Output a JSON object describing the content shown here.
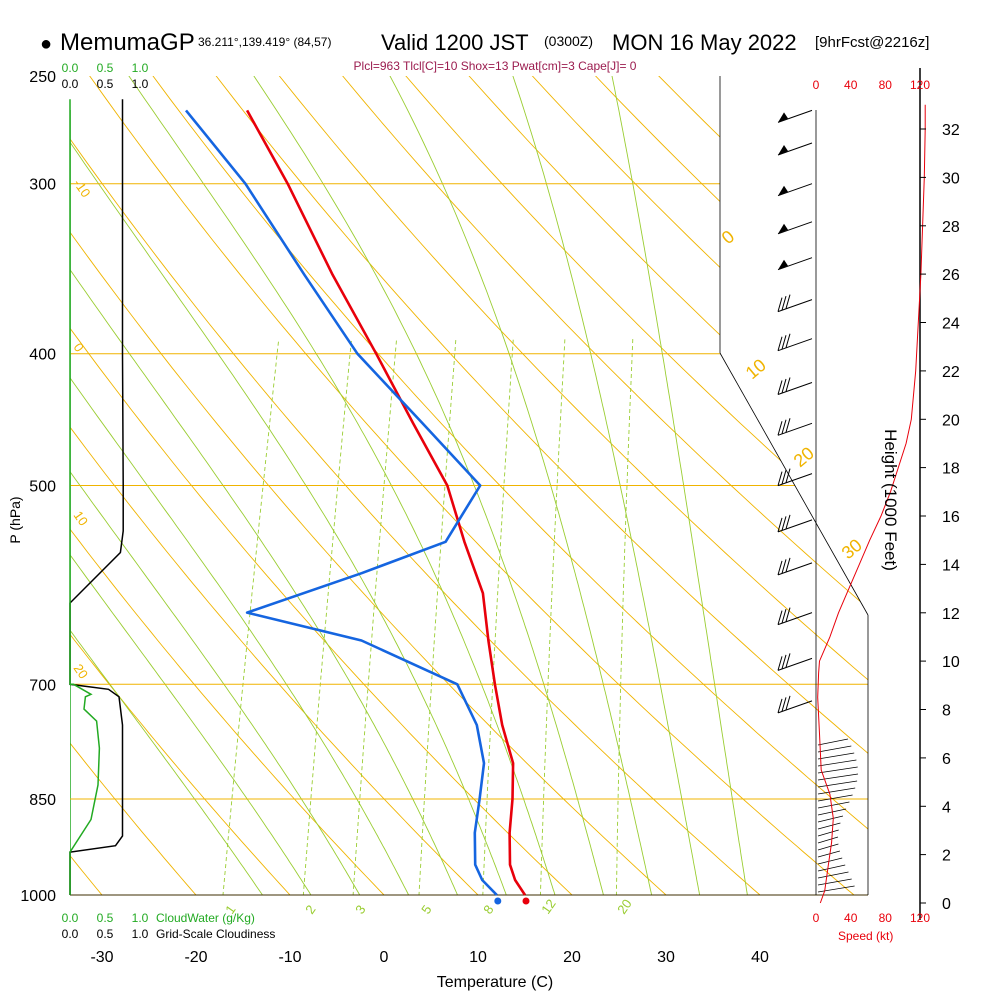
{
  "header": {
    "bullet": "●",
    "model": "MemumaGP",
    "location": "36.211°,139.419° (84,57)",
    "valid": "Valid 1200 JST",
    "zulu": "(0300Z)",
    "date": "MON 16 May 2022",
    "forecast": "[9hrFcst@2216z]",
    "indices": "Plcl=963 Tlcl[C]=10 Shox=13 Pwat[cm]=3 Cape[J]= 0"
  },
  "colors": {
    "isobar": "#f0b400",
    "dry_adiabat": "#f0b400",
    "moist_adiabat": "#9acd32",
    "mixing_ratio": "#9acd32",
    "temperature": "#e8000b",
    "dewpoint": "#1565e0",
    "cloud_water": "#22aa22",
    "cloudiness": "#000000",
    "speed": "#e8000b",
    "indices": "#9b1c4f"
  },
  "axes": {
    "pressure_title": "P (hPa)",
    "pressure_ticks": [
      "250",
      "300",
      "400",
      "500",
      "700",
      "850",
      "1000"
    ],
    "temperature_title": "Temperature (C)",
    "temperature_ticks": [
      "-30",
      "-20",
      "-10",
      "0",
      "10",
      "20",
      "30",
      "40"
    ],
    "height_title": "Height (1000 Feet)",
    "height_ticks": [
      "0",
      "2",
      "4",
      "6",
      "8",
      "10",
      "12",
      "14",
      "16",
      "18",
      "20",
      "22",
      "24",
      "26",
      "28",
      "30",
      "32"
    ],
    "speed_title": "Speed (kt)",
    "speed_ticks": [
      "0",
      "40",
      "80",
      "120"
    ],
    "cloud_water_title": "CloudWater (g/Kg)",
    "cloud_water_ticks": [
      "0.0",
      "0.5",
      "1.0"
    ],
    "cloudiness_title": "Grid-Scale Cloudiness",
    "cloudiness_ticks": [
      "0.0",
      "0.5",
      "1.0"
    ]
  },
  "line_labels": {
    "dry_adiabats": [
      "-10",
      "0",
      "10",
      "20",
      "0",
      "10",
      "20",
      "30"
    ],
    "mixing_ratios": [
      "1",
      "2",
      "3",
      "5",
      "8",
      "12",
      "20"
    ]
  },
  "chart_data": {
    "type": "line",
    "title": "Skew-T log-P sounding",
    "xlabel": "Temperature (C)",
    "ylabel": "P (hPa)",
    "xlim": [
      -33,
      36
    ],
    "ylim": [
      1000,
      250
    ],
    "y_scale": "log",
    "series": [
      {
        "name": "Temperature",
        "role": "temperature",
        "points": [
          [
            15,
            1000
          ],
          [
            13.5,
            975
          ],
          [
            12.5,
            950
          ],
          [
            11.5,
            900
          ],
          [
            10.8,
            850
          ],
          [
            9.8,
            800
          ],
          [
            7.5,
            750
          ],
          [
            5.5,
            700
          ],
          [
            3.5,
            650
          ],
          [
            1.5,
            600
          ],
          [
            -2,
            550
          ],
          [
            -5.5,
            500
          ],
          [
            -11,
            450
          ],
          [
            -17,
            400
          ],
          [
            -24,
            350
          ],
          [
            -31.5,
            300
          ],
          [
            -38,
            265
          ]
        ]
      },
      {
        "name": "Dewpoint",
        "role": "dewpoint",
        "points": [
          [
            12,
            1000
          ],
          [
            10,
            975
          ],
          [
            8.8,
            950
          ],
          [
            7.8,
            900
          ],
          [
            7.3,
            850
          ],
          [
            6.7,
            800
          ],
          [
            4.8,
            750
          ],
          [
            1.5,
            700
          ],
          [
            -10,
            650
          ],
          [
            -23,
            620
          ],
          [
            -12,
            580
          ],
          [
            -4,
            550
          ],
          [
            -2,
            500
          ],
          [
            -10,
            450
          ],
          [
            -19,
            400
          ],
          [
            -27,
            350
          ],
          [
            -36,
            300
          ],
          [
            -44.5,
            265
          ]
        ]
      }
    ],
    "surface_temperature": 15,
    "surface_dewpoint": 12,
    "wind_barbs_pressure_hPa": [
      265,
      280,
      300,
      320,
      340,
      365,
      390,
      420,
      450,
      490,
      530,
      570,
      620,
      670,
      720
    ],
    "wind_speed_profile": {
      "xlabel": "Speed (kt)",
      "xlim": [
        0,
        120
      ],
      "points": [
        [
          5,
          0
        ],
        [
          10,
          0.5
        ],
        [
          14,
          1.5
        ],
        [
          18,
          2.5
        ],
        [
          20,
          3.5
        ],
        [
          16,
          4.5
        ],
        [
          6,
          5.5
        ],
        [
          4,
          7
        ],
        [
          2,
          8.5
        ],
        [
          3,
          9.5
        ],
        [
          4,
          10
        ],
        [
          16,
          11
        ],
        [
          26,
          12
        ],
        [
          38,
          13
        ],
        [
          50,
          14
        ],
        [
          62,
          15
        ],
        [
          75,
          16
        ],
        [
          86,
          17
        ],
        [
          95,
          18
        ],
        [
          104,
          19
        ],
        [
          110,
          20
        ],
        [
          115,
          22
        ],
        [
          118,
          24
        ],
        [
          121,
          26
        ],
        [
          123,
          28
        ],
        [
          125,
          30
        ],
        [
          126,
          32
        ],
        [
          126,
          33
        ]
      ]
    },
    "cloudiness_profile": {
      "xlabel": "Grid-Scale Cloudiness",
      "xlim": [
        0,
        1
      ],
      "points": [
        [
          0,
          1000
        ],
        [
          0,
          930
        ],
        [
          0.65,
          920
        ],
        [
          0.75,
          905
        ],
        [
          0.75,
          750
        ],
        [
          0.7,
          715
        ],
        [
          0.55,
          706
        ],
        [
          0,
          700
        ],
        [
          0,
          610
        ],
        [
          0.72,
          560
        ],
        [
          0.76,
          540
        ],
        [
          0.76,
          500
        ],
        [
          0.75,
          400
        ],
        [
          0.75,
          300
        ],
        [
          0.75,
          260
        ]
      ]
    },
    "cloud_water_profile": {
      "xlabel": "CloudWater (g/Kg)",
      "xlim": [
        0,
        1
      ],
      "points": [
        [
          0,
          1000
        ],
        [
          0,
          930
        ],
        [
          0.3,
          880
        ],
        [
          0.4,
          830
        ],
        [
          0.42,
          780
        ],
        [
          0.38,
          745
        ],
        [
          0.2,
          730
        ],
        [
          0.22,
          715
        ],
        [
          0.3,
          712
        ],
        [
          0.05,
          700
        ],
        [
          0,
          700
        ],
        [
          0,
          260
        ]
      ]
    }
  }
}
